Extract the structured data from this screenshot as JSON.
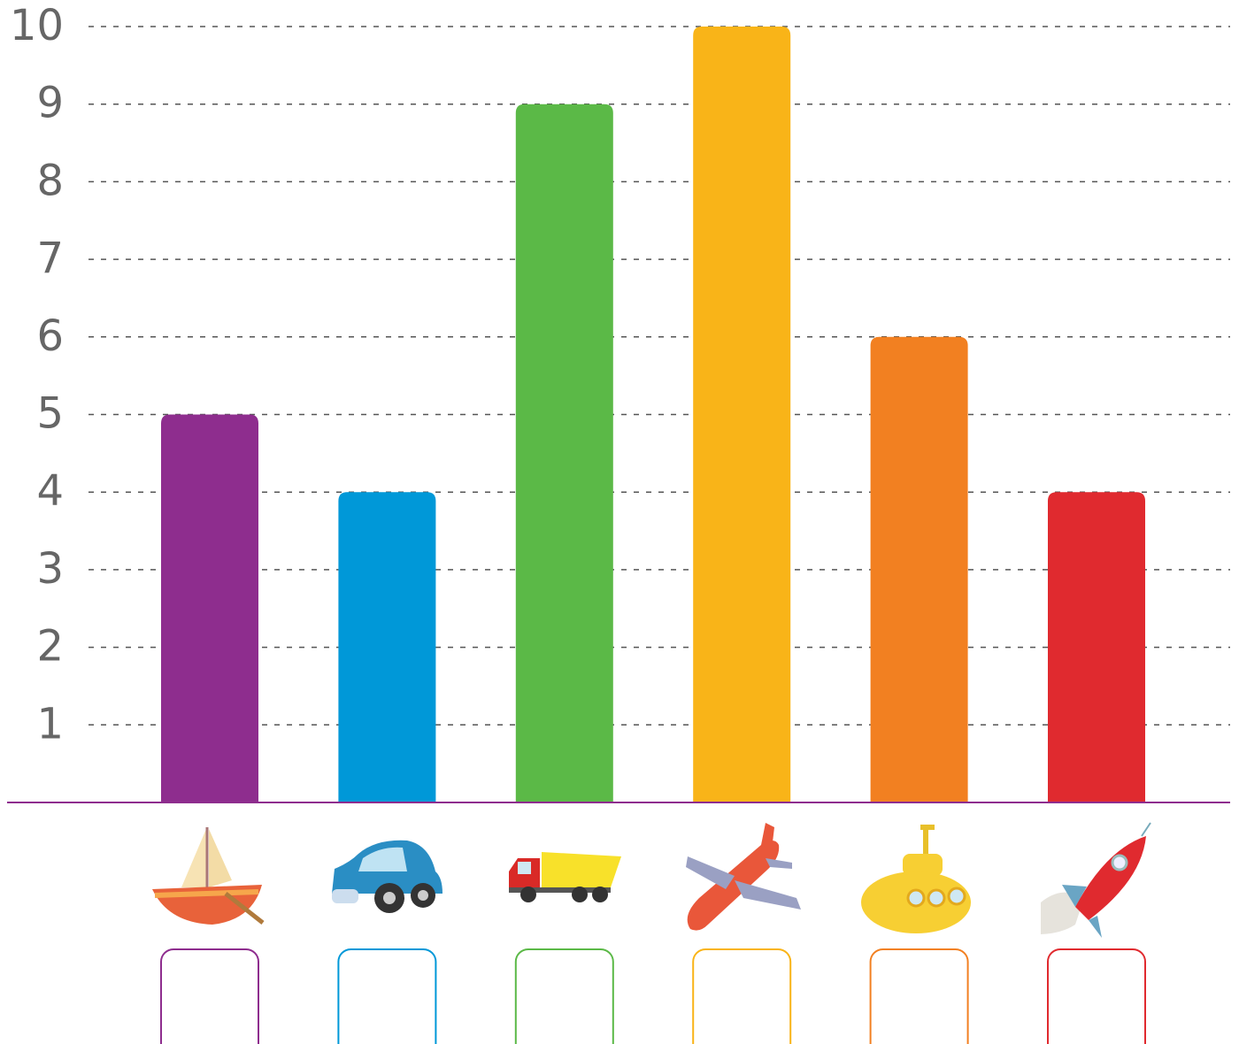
{
  "chart_data": {
    "type": "bar",
    "categories": [
      null,
      null,
      null,
      null,
      null,
      null
    ],
    "values": [
      5,
      4,
      9,
      10,
      6,
      4
    ],
    "colors": [
      "#8e2d8e",
      "#0098d8",
      "#5bb947",
      "#f9b418",
      "#f28021",
      "#e02a2f"
    ],
    "ylim": [
      0,
      10
    ],
    "yticks": [
      1,
      2,
      3,
      4,
      5,
      6,
      7,
      8,
      9,
      10
    ],
    "grid": true
  }
}
